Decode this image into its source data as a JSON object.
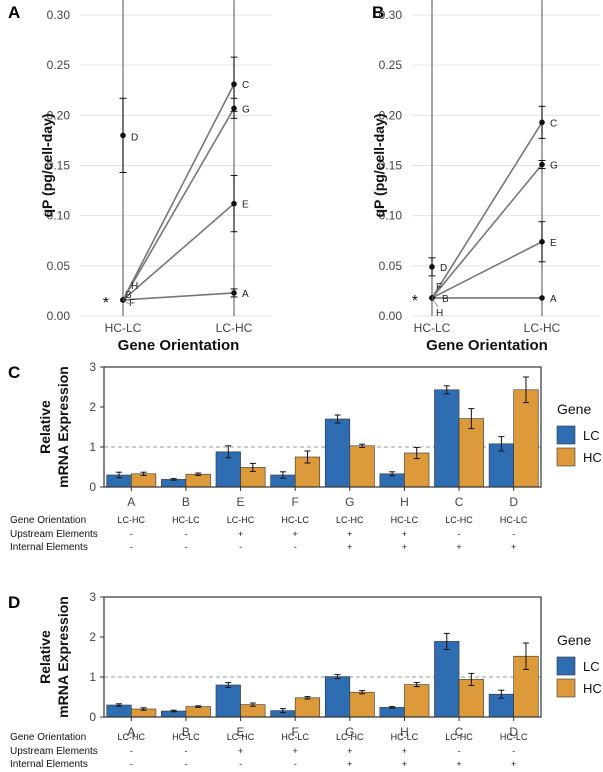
{
  "colors": {
    "lc": "#2f6db3",
    "hc": "#dc9a3a",
    "line": "#777777",
    "grid": "#e3e3e3",
    "text": "#222222"
  },
  "chart_data": [
    {
      "type": "line",
      "panel": "A",
      "xlabel": "Gene Orientation",
      "ylabel": "qP (pg/cell-day)",
      "categories": [
        "HC-LC",
        "LC-HC"
      ],
      "ylim": [
        0,
        0.3
      ],
      "yticks": [
        "0.00",
        "0.05",
        "0.10",
        "0.15",
        "0.20",
        "0.25",
        "0.30"
      ],
      "star": "*",
      "base_value": 0.016,
      "points": [
        {
          "label": "D",
          "x": 0,
          "y": 0.18,
          "err": 0.037
        },
        {
          "label": "H",
          "x": 0,
          "y": 0.016,
          "err": 0
        },
        {
          "label": "B",
          "x": 0,
          "y": 0.016,
          "err": 0
        },
        {
          "label": "F",
          "x": 0,
          "y": 0.016,
          "err": 0
        },
        {
          "label": "C",
          "x": 1,
          "y": 0.231,
          "err": 0.027
        },
        {
          "label": "G",
          "x": 1,
          "y": 0.207,
          "err": 0.01
        },
        {
          "label": "E",
          "x": 1,
          "y": 0.112,
          "err": 0.028
        },
        {
          "label": "A",
          "x": 1,
          "y": 0.023,
          "err": 0.004
        }
      ],
      "lines": [
        [
          0.016,
          0.231
        ],
        [
          0.016,
          0.207
        ],
        [
          0.016,
          0.112
        ],
        [
          0.016,
          0.023
        ]
      ]
    },
    {
      "type": "line",
      "panel": "B",
      "xlabel": "Gene Orientation",
      "ylabel": "qP (pg/cell-day)",
      "categories": [
        "HC-LC",
        "LC-HC"
      ],
      "ylim": [
        0,
        0.3
      ],
      "yticks": [
        "0.00",
        "0.05",
        "0.10",
        "0.15",
        "0.20",
        "0.25",
        "0.30"
      ],
      "star": "*",
      "base_value": 0.018,
      "points": [
        {
          "label": "D",
          "x": 0,
          "y": 0.049,
          "err": 0.009
        },
        {
          "label": "F",
          "x": 0,
          "y": 0.018,
          "err": 0
        },
        {
          "label": "B",
          "x": 0,
          "y": 0.018,
          "err": 0
        },
        {
          "label": "H",
          "x": 0,
          "y": 0.018,
          "err": 0
        },
        {
          "label": "C",
          "x": 1,
          "y": 0.193,
          "err": 0.016
        },
        {
          "label": "G",
          "x": 1,
          "y": 0.151,
          "err": 0.004
        },
        {
          "label": "E",
          "x": 1,
          "y": 0.074,
          "err": 0.02
        },
        {
          "label": "A",
          "x": 1,
          "y": 0.018,
          "err": 0
        }
      ],
      "lines": [
        [
          0.018,
          0.193
        ],
        [
          0.018,
          0.151
        ],
        [
          0.018,
          0.074
        ],
        [
          0.018,
          0.018
        ]
      ]
    },
    {
      "type": "bar",
      "panel": "C",
      "ylabel": [
        "Relative",
        "mRNA Expression"
      ],
      "ylim": [
        0,
        3
      ],
      "yticks": [
        "0",
        "1",
        "2",
        "3"
      ],
      "refline": 1,
      "categories": [
        "A",
        "B",
        "E",
        "F",
        "G",
        "H",
        "C",
        "D"
      ],
      "series": [
        {
          "name": "LC",
          "values": [
            0.3,
            0.19,
            0.88,
            0.3,
            1.7,
            0.33,
            2.43,
            1.08
          ],
          "err": [
            0.07,
            0.02,
            0.15,
            0.08,
            0.1,
            0.05,
            0.1,
            0.18
          ]
        },
        {
          "name": "HC",
          "values": [
            0.33,
            0.32,
            0.49,
            0.75,
            1.03,
            0.85,
            1.71,
            2.43
          ],
          "err": [
            0.04,
            0.03,
            0.1,
            0.15,
            0.04,
            0.14,
            0.25,
            0.32
          ]
        }
      ],
      "legend_title": "Gene",
      "row_labels": [
        "Gene Orientation",
        "Upstream Elements",
        "Internal Elements"
      ],
      "rows": [
        [
          "LC-HC",
          "HC-LC",
          "LC-HC",
          "HC-LC",
          "LC-HC",
          "HC-LC",
          "LC-HC",
          "HC-LC"
        ],
        [
          "-",
          "-",
          "+",
          "+",
          "+",
          "+",
          "-",
          "-"
        ],
        [
          "-",
          "-",
          "-",
          "-",
          "+",
          "+",
          "+",
          "+"
        ]
      ]
    },
    {
      "type": "bar",
      "panel": "D",
      "ylabel": [
        "Relative",
        "mRNA Expression"
      ],
      "ylim": [
        0,
        3
      ],
      "yticks": [
        "0",
        "1",
        "2",
        "3"
      ],
      "refline": 1,
      "categories": [
        "A",
        "B",
        "E",
        "F",
        "G",
        "H",
        "C",
        "D"
      ],
      "series": [
        {
          "name": "LC",
          "values": [
            0.3,
            0.15,
            0.8,
            0.16,
            1.01,
            0.24,
            1.89,
            0.57
          ],
          "err": [
            0.03,
            0.02,
            0.06,
            0.05,
            0.05,
            0.02,
            0.2,
            0.1
          ]
        },
        {
          "name": "HC",
          "values": [
            0.2,
            0.26,
            0.31,
            0.48,
            0.62,
            0.81,
            0.94,
            1.52
          ],
          "err": [
            0.03,
            0.02,
            0.04,
            0.03,
            0.04,
            0.05,
            0.15,
            0.33
          ]
        }
      ],
      "legend_title": "Gene",
      "row_labels": [
        "Gene Orientation",
        "Upstream Elements",
        "Internal Elements"
      ],
      "rows": [
        [
          "LC-HC",
          "HC-LC",
          "LC-HC",
          "HC-LC",
          "LC-HC",
          "HC-LC",
          "LC-HC",
          "HC-LC"
        ],
        [
          "-",
          "-",
          "+",
          "+",
          "+",
          "+",
          "-",
          "-"
        ],
        [
          "-",
          "-",
          "-",
          "-",
          "+",
          "+",
          "+",
          "+"
        ]
      ]
    }
  ]
}
